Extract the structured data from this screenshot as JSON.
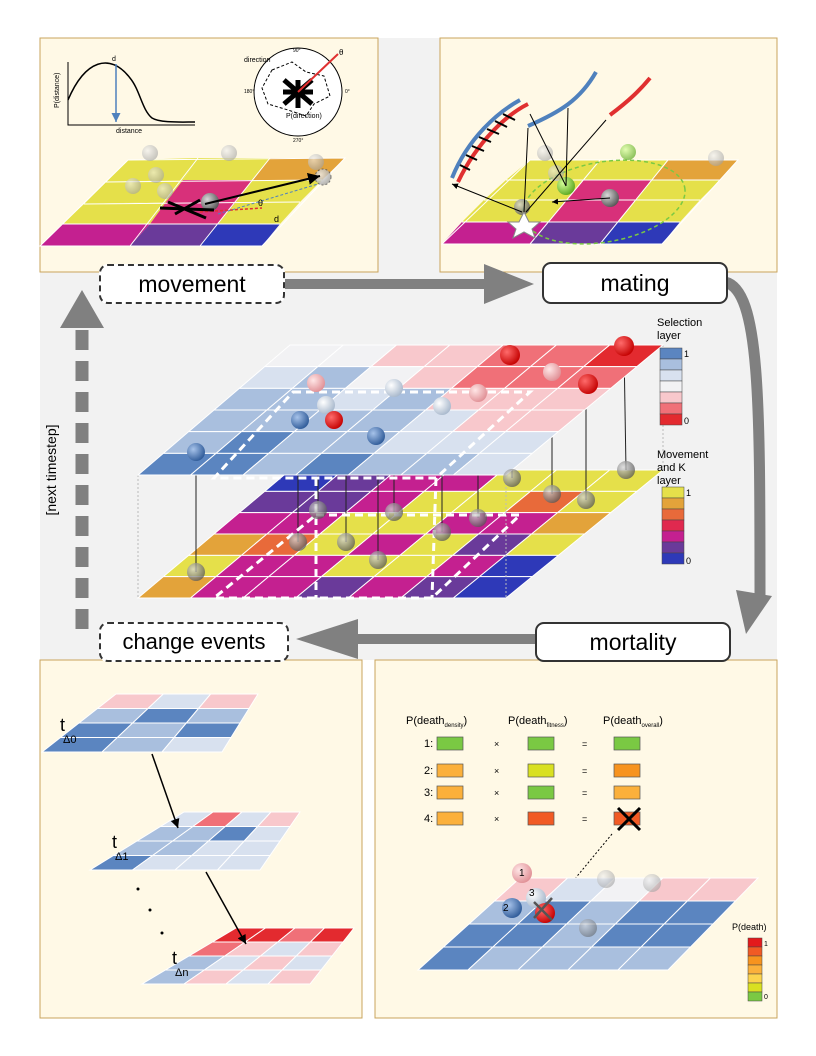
{
  "stages": {
    "movement": "movement",
    "mating": "mating",
    "mortality": "mortality",
    "change_events": "change events",
    "next_timestep": "[next timestep]"
  },
  "movement_panel": {
    "p_distance_label": "P(distance)",
    "distance_label": "distance",
    "d_label": "d",
    "direction_label": "direction",
    "p_direction_label": "P(direction)",
    "theta_label": "θ",
    "angle_90": "90°",
    "angle_180": "180°",
    "angle_270": "270°",
    "angle_0": "0°",
    "theta_small": "θ",
    "d_small": "d"
  },
  "legend_selection": {
    "title_line1": "Selection",
    "title_line2": "layer",
    "max": "1",
    "min": "0",
    "colors": [
      "#5b85c0",
      "#a9bfde",
      "#d8e1ef",
      "#f2f2f4",
      "#f8c8cc",
      "#f07078",
      "#e32a2f"
    ]
  },
  "legend_movement": {
    "title_line1": "Movement",
    "title_line2": "and K",
    "title_line3": "layer",
    "max": "1",
    "min": "0",
    "colors": [
      "#e5e04a",
      "#e3a33a",
      "#e86a3a",
      "#e0294f",
      "#c42090",
      "#6a3a9a",
      "#2e39b8"
    ]
  },
  "change_panel": {
    "t0_main": "t",
    "t0_sub": "Δ0",
    "t1_main": "t",
    "t1_sub": "Δ1",
    "tn_main": "t",
    "tn_sub": "Δn"
  },
  "mortality_panel": {
    "h_density_main": "P(death",
    "h_density_sub": "density",
    "h_fitness_main": "P(death",
    "h_fitness_sub": "fitness",
    "h_overall_main": "P(death",
    "h_overall_sub": "overall",
    "close_paren": ")",
    "times": "×",
    "equals": "=",
    "rows": [
      {
        "label": "1:",
        "density": "#7ac943",
        "fitness": "#7ac943",
        "overall": "#7ac943"
      },
      {
        "label": "2:",
        "density": "#fbb03b",
        "fitness": "#d9e021",
        "overall": "#f7931e"
      },
      {
        "label": "3:",
        "density": "#fbb03b",
        "fitness": "#7ac943",
        "overall": "#fbb03b"
      },
      {
        "label": "4:",
        "density": "#fbb03b",
        "fitness": "#f15a24",
        "overall": "#f15a24"
      }
    ],
    "legend_title": "P(death)",
    "legend_max": "1",
    "legend_min": "0",
    "legend_colors": [
      "#e31a1c",
      "#f15a24",
      "#f7931e",
      "#fbb03b",
      "#fcd34d",
      "#d9e021",
      "#7ac943"
    ],
    "ind_1": "1",
    "ind_2": "2",
    "ind_3": "3"
  }
}
